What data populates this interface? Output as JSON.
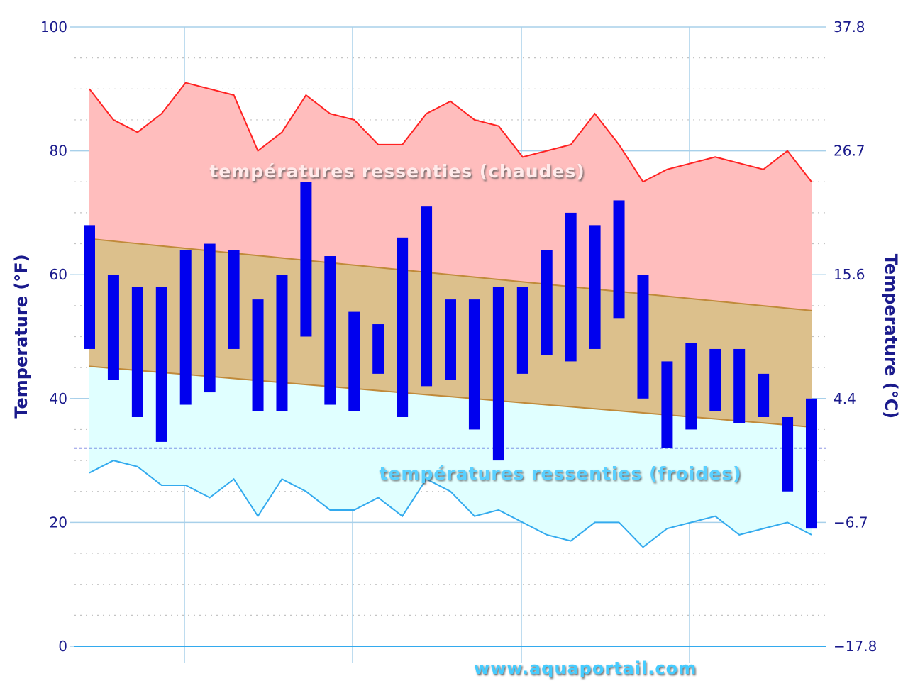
{
  "chart_data": {
    "type": "bar",
    "ylabel_left": "Temperature (°F)",
    "ylabel_right": "Temperature (°C)",
    "ylim": [
      0,
      100
    ],
    "y_ticks_left": [
      "0",
      "20",
      "40",
      "60",
      "80",
      "100"
    ],
    "y_ticks_right": [
      "−17.8",
      "−6.7",
      "4.4",
      "15.6",
      "26.7",
      "37.8"
    ],
    "grid": true,
    "freezing_line": 32,
    "labels": {
      "hot": "températures ressenties (chaudes)",
      "cold": "températures ressenties (froides)",
      "website": "www.aquaportail.com"
    },
    "colors": {
      "hot_fill": "#ffbdbd",
      "hot_line": "#ff2222",
      "normal_fill": "#dcc08c",
      "normal_line": "#c08a3a",
      "cold_fill": "#e0ffff",
      "cold_line": "#33aaee",
      "bar": "#0000ee",
      "grid": "#a8d0ea",
      "freezing": "#2233cc",
      "label_hot": "#ffeaea",
      "label_cold": "#5ad0ff",
      "website": "#44ccff"
    },
    "feels_like_hot": [
      90,
      85,
      83,
      86,
      91,
      90,
      89,
      80,
      83,
      89,
      86,
      85,
      81,
      81,
      86,
      88,
      85,
      84,
      79,
      80,
      81,
      86,
      81,
      75,
      77,
      78,
      79,
      78,
      77,
      80,
      75
    ],
    "feels_like_cold": [
      28,
      30,
      29,
      26,
      26,
      24,
      27,
      21,
      27,
      25,
      22,
      22,
      24,
      21,
      27,
      25,
      21,
      22,
      20,
      18,
      17,
      20,
      20,
      16,
      19,
      20,
      21,
      18,
      19,
      20,
      18
    ],
    "normal_high": {
      "start": 65.8,
      "end": 54.2
    },
    "normal_low": {
      "start": 45.2,
      "end": 35.4
    },
    "daily_high": [
      68,
      60,
      58,
      58,
      64,
      65,
      64,
      56,
      60,
      75,
      63,
      54,
      52,
      66,
      71,
      56,
      56,
      58,
      58,
      64,
      70,
      68,
      72,
      60,
      46,
      49,
      48,
      48,
      44,
      37,
      40
    ],
    "daily_low": [
      48,
      43,
      37,
      33,
      39,
      41,
      48,
      38,
      38,
      50,
      39,
      38,
      44,
      37,
      42,
      43,
      35,
      30,
      44,
      47,
      46,
      48,
      53,
      40,
      32,
      35,
      38,
      36,
      37,
      25,
      19
    ]
  }
}
